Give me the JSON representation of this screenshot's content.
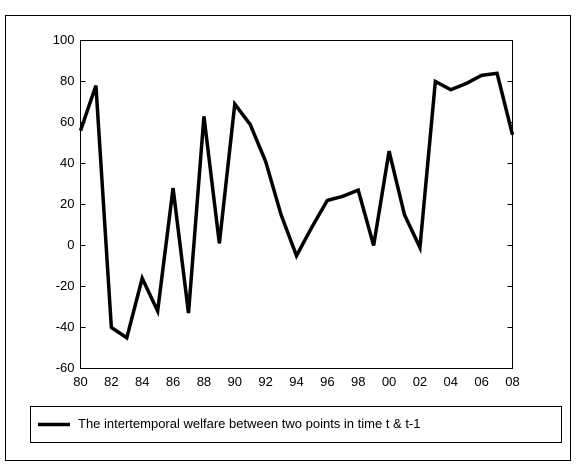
{
  "chart_data": {
    "type": "line",
    "categories": [
      "80",
      null,
      "82",
      null,
      "84",
      null,
      "86",
      null,
      "88",
      null,
      "90",
      null,
      "92",
      null,
      "94",
      null,
      "96",
      null,
      "98",
      null,
      "00",
      null,
      "02",
      null,
      "04",
      null,
      "06",
      null,
      "08"
    ],
    "series": [
      {
        "name": "The intertemporal welfare between two points in time t & t-1",
        "color": "#000000",
        "values": [
          56,
          78,
          -40,
          -45,
          -16,
          -32,
          28,
          -33,
          63,
          1,
          69,
          59,
          41,
          15,
          -5,
          9,
          22,
          24,
          27,
          0,
          46,
          15,
          -1,
          80,
          76,
          79,
          83,
          84,
          54
        ]
      }
    ],
    "ylim": [
      -60,
      100
    ],
    "yticks": [
      100,
      80,
      60,
      40,
      20,
      0,
      -20,
      -40,
      -60
    ],
    "grid": false,
    "legend": "bottom"
  }
}
